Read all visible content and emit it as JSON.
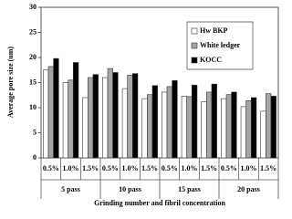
{
  "chart_data": {
    "type": "bar",
    "x_label": "Grinding number and fibril concentration",
    "y_label": "Average pore size (um)",
    "categories": [
      "0.5%",
      "1.0%",
      "1.5%",
      "0.5%",
      "1.0%",
      "1.5%",
      "0.5%",
      "1.0%",
      "1.5%",
      "0.5%",
      "1.0%",
      "1.5%"
    ],
    "groups": [
      "5 pass",
      "10 pass",
      "15 pass",
      "20 pass"
    ],
    "series": [
      {
        "name": "Hw BKP",
        "color": "#ffffff",
        "values": [
          17.5,
          15,
          12,
          16,
          13.8,
          11.8,
          13.1,
          12.3,
          11.2,
          11.8,
          10.2,
          9.3
        ]
      },
      {
        "name": "White ledger",
        "color": "#a6a6a6",
        "values": [
          18.2,
          15.5,
          16,
          17.8,
          16.5,
          12.6,
          14.2,
          12.2,
          13.1,
          12.6,
          11.4,
          12.8
        ]
      },
      {
        "name": "KOCC",
        "color": "#000000",
        "values": [
          19.8,
          19,
          16.6,
          17,
          16.8,
          14.4,
          15.4,
          14.5,
          14.7,
          13.1,
          12,
          12.3
        ]
      }
    ],
    "ylim": [
      0,
      30
    ],
    "yticks": [
      0,
      5,
      10,
      15,
      20,
      25,
      30
    ],
    "legend": "upper-right"
  }
}
